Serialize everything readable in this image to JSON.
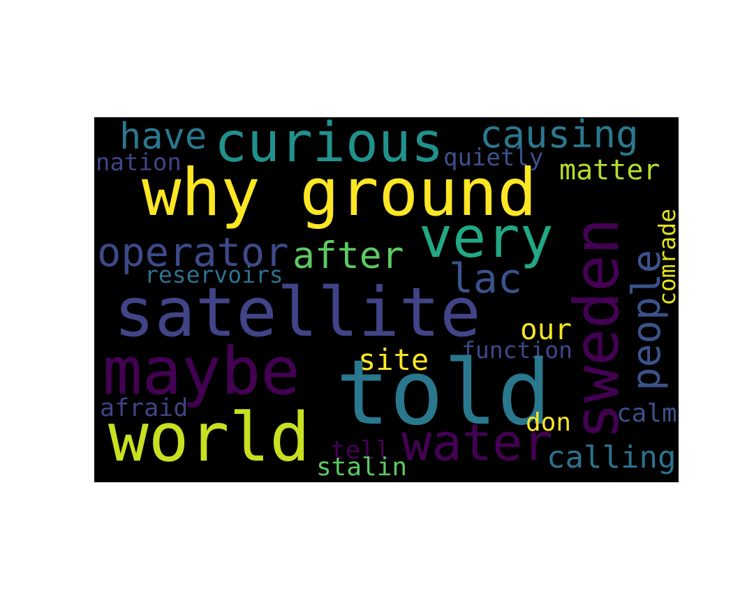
{
  "words": [
    {
      "text": "why ground",
      "color": "#fde725"
    },
    {
      "text": "curious",
      "color": "#21918c"
    },
    {
      "text": "causing",
      "color": "#2a788e"
    },
    {
      "text": "have",
      "color": "#2a788e"
    },
    {
      "text": "nation",
      "color": "#414487"
    },
    {
      "text": "quietly",
      "color": "#3b528b"
    },
    {
      "text": "matter",
      "color": "#b5de2b"
    },
    {
      "text": "very",
      "color": "#22a884"
    },
    {
      "text": "operator",
      "color": "#3e4989"
    },
    {
      "text": "after",
      "color": "#5ec962"
    },
    {
      "text": "reservoirs",
      "color": "#2c728e"
    },
    {
      "text": "lac",
      "color": "#3b528b"
    },
    {
      "text": "satellite",
      "color": "#414487"
    },
    {
      "text": "sweden",
      "color": "#440154"
    },
    {
      "text": "people",
      "color": "#3b528b"
    },
    {
      "text": "comrade",
      "color": "#e4e419"
    },
    {
      "text": "our",
      "color": "#f3e61f"
    },
    {
      "text": "maybe",
      "color": "#440154"
    },
    {
      "text": "site",
      "color": "#fde725"
    },
    {
      "text": "function",
      "color": "#3e4989"
    },
    {
      "text": "told",
      "color": "#2a788e"
    },
    {
      "text": "afraid",
      "color": "#414487"
    },
    {
      "text": "don",
      "color": "#fde725"
    },
    {
      "text": "calm",
      "color": "#3b528b"
    },
    {
      "text": "world",
      "color": "#c8e020"
    },
    {
      "text": "water",
      "color": "#440154"
    },
    {
      "text": "tell",
      "color": "#440154"
    },
    {
      "text": "calling",
      "color": "#2c728e"
    },
    {
      "text": "stalin",
      "color": "#5ec962"
    }
  ]
}
